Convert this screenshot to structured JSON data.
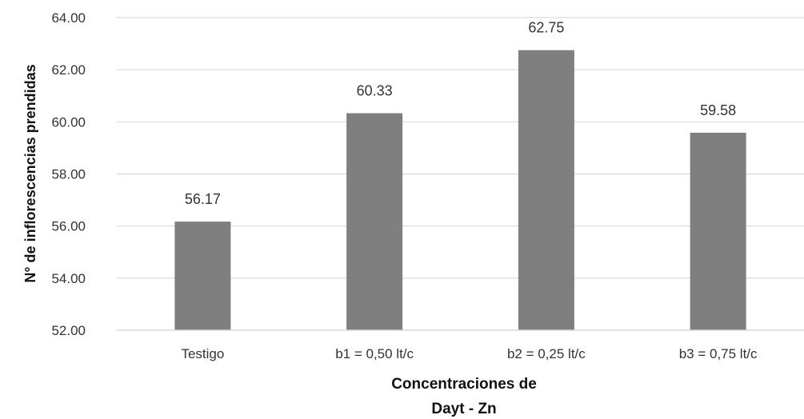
{
  "chart_data": {
    "type": "bar",
    "categories": [
      "Testigo",
      "b1 = 0,50 lt/c",
      "b2 = 0,25 lt/c",
      "b3 = 0,75 lt/c"
    ],
    "values": [
      56.17,
      60.33,
      62.75,
      59.58
    ],
    "data_labels": [
      "56.17",
      "60.33",
      "62.75",
      "59.58"
    ],
    "ylabel": "N° de inflorescencias prendidas",
    "xlabel": [
      "Concentraciones de",
      "Dayt -  Zn"
    ],
    "ylim": [
      52,
      64
    ],
    "yticks": [
      "52.00",
      "54.00",
      "56.00",
      "58.00",
      "60.00",
      "62.00",
      "64.00"
    ],
    "grid": true,
    "bar_color": "#7f7f7f",
    "grid_color": "#d9d9d9"
  }
}
